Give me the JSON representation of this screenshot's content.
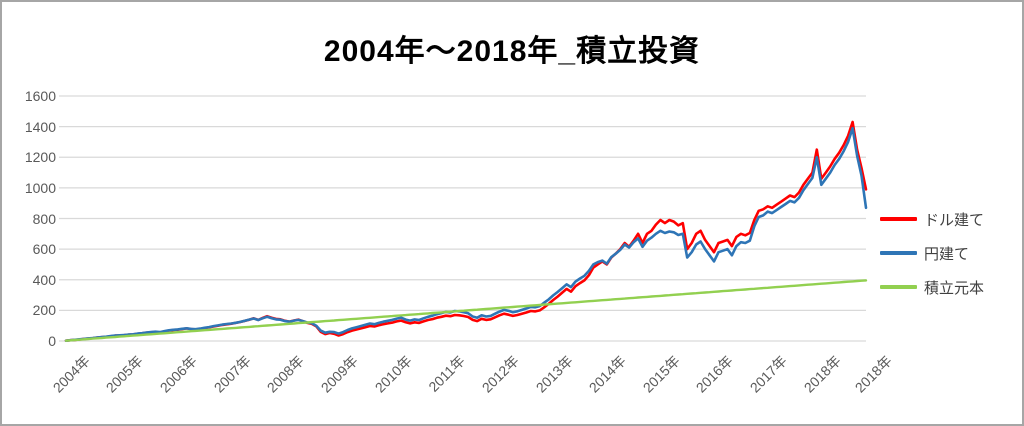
{
  "title": "2004年～2018年_積立投資",
  "chart_data": {
    "type": "line",
    "title": "2004年～2018年_積立投資",
    "x_unit": "monthly points, Jan 2004 - Dec 2018",
    "months": 180,
    "x_tick_labels": [
      "2004年",
      "2005年",
      "2006年",
      "2007年",
      "2008年",
      "2009年",
      "2010年",
      "2011年",
      "2012年",
      "2013年",
      "2014年",
      "2015年",
      "2016年",
      "2017年",
      "2018年",
      "2018年"
    ],
    "y_ticks": [
      0,
      200,
      400,
      600,
      800,
      1000,
      1200,
      1400,
      1600
    ],
    "ylim": [
      0,
      1600
    ],
    "grid": "horizontal",
    "grid_color": "#d9d9d9",
    "legend_position": "right",
    "series": [
      {
        "name": "ドル建て",
        "color": "#ff0000",
        "values": [
          2,
          5,
          7,
          10,
          14,
          16,
          18,
          22,
          25,
          27,
          31,
          35,
          36,
          38,
          41,
          43,
          47,
          50,
          54,
          57,
          59,
          56,
          62,
          68,
          71,
          74,
          78,
          82,
          78,
          75,
          79,
          84,
          89,
          95,
          100,
          105,
          109,
          113,
          118,
          124,
          131,
          139,
          148,
          138,
          150,
          162,
          152,
          144,
          142,
          132,
          127,
          134,
          140,
          129,
          118,
          112,
          96,
          60,
          45,
          52,
          47,
          36,
          45,
          58,
          68,
          75,
          82,
          90,
          98,
          95,
          103,
          110,
          115,
          120,
          128,
          133,
          122,
          115,
          122,
          118,
          128,
          137,
          143,
          152,
          158,
          165,
          162,
          170,
          168,
          163,
          157,
          138,
          130,
          145,
          138,
          142,
          155,
          168,
          178,
          172,
          164,
          170,
          178,
          186,
          196,
          193,
          200,
          220,
          242,
          268,
          290,
          315,
          340,
          322,
          358,
          378,
          396,
          430,
          480,
          500,
          520,
          500,
          545,
          570,
          600,
          640,
          615,
          655,
          700,
          640,
          700,
          720,
          760,
          790,
          770,
          790,
          780,
          755,
          770,
          600,
          640,
          700,
          720,
          660,
          620,
          580,
          640,
          650,
          660,
          620,
          680,
          700,
          690,
          705,
          790,
          850,
          860,
          880,
          870,
          890,
          910,
          930,
          950,
          940,
          970,
          1020,
          1060,
          1100,
          1250,
          1060,
          1100,
          1140,
          1190,
          1230,
          1280,
          1340,
          1430,
          1250,
          1130,
          990
        ]
      },
      {
        "name": "円建て",
        "color": "#2e75b6",
        "values": [
          2,
          5,
          8,
          11,
          14,
          17,
          19,
          23,
          26,
          28,
          32,
          36,
          37,
          39,
          42,
          44,
          48,
          51,
          55,
          58,
          61,
          58,
          64,
          70,
          73,
          76,
          80,
          83,
          79,
          77,
          81,
          86,
          91,
          97,
          102,
          107,
          111,
          114,
          119,
          125,
          132,
          140,
          147,
          137,
          148,
          158,
          149,
          141,
          139,
          130,
          126,
          133,
          138,
          130,
          121,
          116,
          100,
          68,
          54,
          60,
          58,
          48,
          58,
          72,
          82,
          90,
          98,
          106,
          114,
          110,
          118,
          126,
          132,
          138,
          146,
          152,
          140,
          133,
          141,
          137,
          148,
          158,
          165,
          175,
          182,
          190,
          187,
          196,
          193,
          188,
          181,
          160,
          152,
          168,
          160,
          164,
          178,
          192,
          203,
          197,
          188,
          194,
          203,
          212,
          223,
          220,
          228,
          250,
          272,
          298,
          320,
          345,
          370,
          352,
          388,
          408,
          426,
          458,
          500,
          515,
          525,
          505,
          548,
          570,
          595,
          630,
          610,
          645,
          670,
          615,
          655,
          675,
          700,
          720,
          705,
          715,
          710,
          692,
          700,
          545,
          580,
          630,
          650,
          600,
          560,
          520,
          580,
          590,
          600,
          560,
          620,
          645,
          640,
          655,
          750,
          810,
          820,
          845,
          835,
          855,
          875,
          895,
          915,
          905,
          935,
          985,
          1025,
          1065,
          1200,
          1020,
          1060,
          1100,
          1150,
          1190,
          1240,
          1300,
          1390,
          1210,
          1080,
          870
        ]
      },
      {
        "name": "積立元本",
        "color": "#92d050",
        "values_linear": {
          "start": 2.2,
          "end": 396
        }
      }
    ]
  },
  "legend": {
    "items": [
      {
        "label": "ドル建て",
        "color": "#ff0000"
      },
      {
        "label": "円建て",
        "color": "#2e75b6"
      },
      {
        "label": "積立元本",
        "color": "#92d050"
      }
    ]
  },
  "axis": {
    "y_label_color": "#595959",
    "x_label_color": "#595959"
  }
}
